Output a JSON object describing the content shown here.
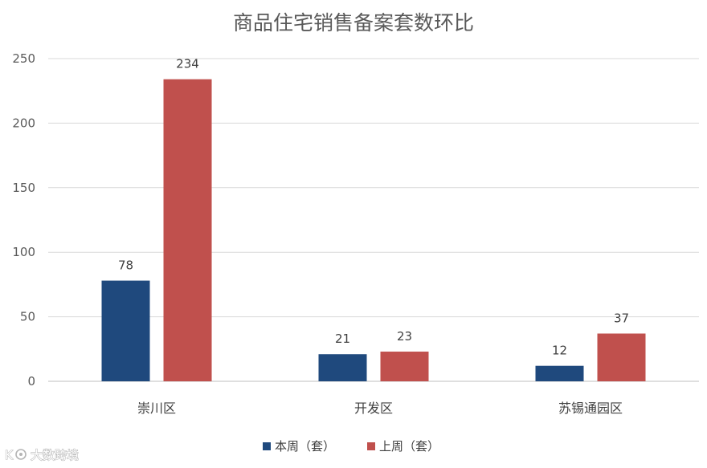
{
  "chart_data": {
    "type": "bar",
    "title": "商品住宅销售备案套数环比",
    "categories": [
      "崇川区",
      "开发区",
      "苏锡通园区"
    ],
    "series": [
      {
        "name": "本周（套）",
        "values": [
          78,
          21,
          12
        ],
        "color": "#1f497d"
      },
      {
        "name": "上周（套）",
        "values": [
          234,
          23,
          37
        ],
        "color": "#c0504d"
      }
    ],
    "ylim": [
      0,
      250
    ],
    "yticks": [
      0,
      50,
      100,
      150,
      200,
      250
    ],
    "grid": true,
    "legend_position": "bottom",
    "xlabel": "",
    "ylabel": ""
  },
  "watermark": {
    "text": "大数跨境",
    "logo": "kuajing-logo-icon"
  }
}
